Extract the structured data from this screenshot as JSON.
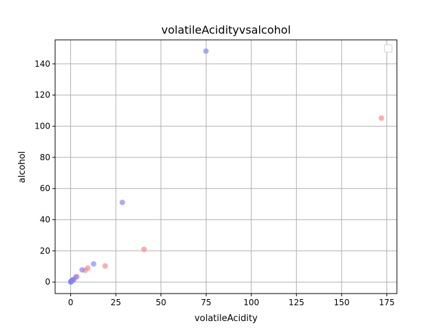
{
  "chart_data": {
    "type": "scatter",
    "title": "volatileAcidityvsalcohol",
    "xlabel": "volatileAcidity",
    "ylabel": "alcohol",
    "xlim": [
      -8.6,
      180.6
    ],
    "ylim": [
      -7.4,
      155.4
    ],
    "xticks": [
      0,
      25,
      50,
      75,
      100,
      125,
      150,
      175
    ],
    "yticks": [
      0,
      20,
      40,
      60,
      80,
      100,
      120,
      140
    ],
    "grid": true,
    "legend": "top-right (empty)",
    "series": [
      {
        "color": "#ff8080",
        "points": [
          {
            "x": 172.0,
            "y": 105.2
          },
          {
            "x": 40.6,
            "y": 21.0
          },
          {
            "x": 19.1,
            "y": 10.3
          },
          {
            "x": 9.5,
            "y": 9.0
          },
          {
            "x": 8.0,
            "y": 7.5
          },
          {
            "x": 3.4,
            "y": 3.5
          },
          {
            "x": 1.5,
            "y": 1.6
          },
          {
            "x": 0.8,
            "y": 1.0
          },
          {
            "x": 0.4,
            "y": 0.6
          },
          {
            "x": 0.2,
            "y": 0.3
          }
        ]
      },
      {
        "color": "#8080ff",
        "points": [
          {
            "x": 74.9,
            "y": 148.2
          },
          {
            "x": 28.6,
            "y": 51.1
          },
          {
            "x": 12.7,
            "y": 11.6
          },
          {
            "x": 6.3,
            "y": 7.8
          },
          {
            "x": 2.9,
            "y": 3.2
          },
          {
            "x": 1.6,
            "y": 1.4
          },
          {
            "x": 0.9,
            "y": 1.1
          },
          {
            "x": 0.5,
            "y": 0.8
          },
          {
            "x": 0.3,
            "y": 0.5
          },
          {
            "x": 0.1,
            "y": 0.2
          },
          {
            "x": 0.05,
            "y": 0.05
          }
        ]
      }
    ]
  }
}
